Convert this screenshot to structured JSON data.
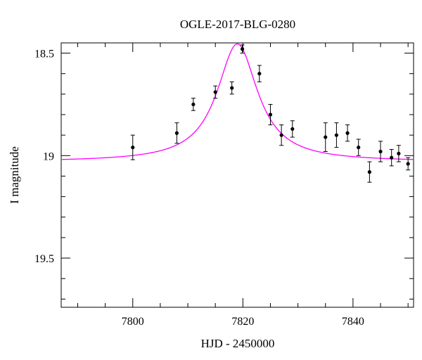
{
  "chart_data": {
    "type": "scatter",
    "title": "OGLE-2017-BLG-0280",
    "xlabel": "HJD - 2450000",
    "ylabel": "I magnitude",
    "xlim": [
      7787,
      7851
    ],
    "ylim": [
      19.74,
      18.45
    ],
    "y_inverted": true,
    "x_major_ticks": [
      7800,
      7820,
      7840
    ],
    "y_major_ticks": [
      18.5,
      19,
      19.5
    ],
    "x_minor_step": 5,
    "y_minor_step": 0.1,
    "grid": false,
    "series": [
      {
        "kind": "points_with_errorbars",
        "color": "#000000",
        "x": [
          7800.0,
          7808.0,
          7811.0,
          7815.0,
          7818.0,
          7819.9,
          7823.0,
          7825.0,
          7827.0,
          7829.0,
          7835.0,
          7837.0,
          7839.0,
          7841.0,
          7843.0,
          7845.0,
          7847.0,
          7848.3,
          7850.0
        ],
        "y": [
          18.96,
          18.89,
          18.75,
          18.69,
          18.67,
          18.48,
          18.6,
          18.8,
          18.9,
          18.87,
          18.91,
          18.9,
          18.89,
          18.96,
          19.08,
          18.98,
          19.01,
          18.99,
          19.04
        ],
        "err": [
          0.06,
          0.05,
          0.03,
          0.03,
          0.03,
          0.02,
          0.04,
          0.05,
          0.05,
          0.04,
          0.07,
          0.06,
          0.04,
          0.04,
          0.05,
          0.05,
          0.04,
          0.04,
          0.03
        ]
      },
      {
        "kind": "model_curve",
        "color": "#ff00ff",
        "t0": 7819.0,
        "peak_mag": 18.455,
        "base_mag": 19.03,
        "hwhm": 4.5
      }
    ]
  }
}
